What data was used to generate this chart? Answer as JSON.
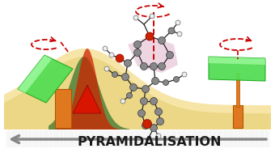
{
  "bg_color": "#ffffff",
  "title_text": "PYRAMIDALISATION",
  "title_fontsize": 11.5,
  "orange_color": "#e07820",
  "orange_edge": "#b05500",
  "green_light": "#aaffaa",
  "green_mid": "#55dd55",
  "green_dark": "#22aa22",
  "red_color": "#cc0000",
  "yellow_surface": "#f0d060",
  "yellow_surface2": "#d8b840",
  "pink_ring": "#cc88aa",
  "arrow_gray": "#888888",
  "mol_gray": "#888888",
  "mol_white": "#eeeeee",
  "mol_red": "#cc2200",
  "mol_black": "#222222",
  "peak_red": "#cc2200",
  "peak_green": "#226622"
}
